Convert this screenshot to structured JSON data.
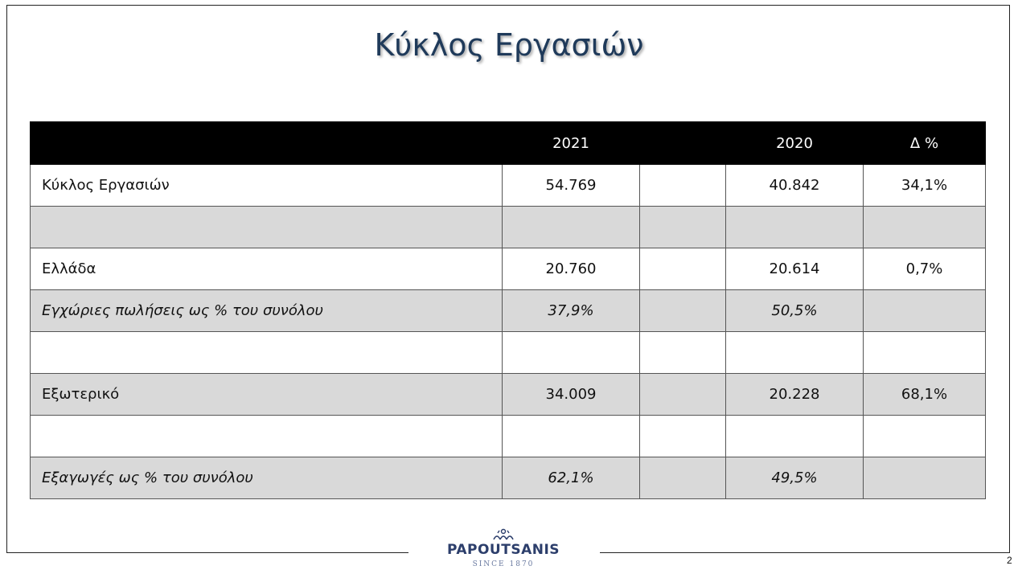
{
  "title": "Κύκλος Εργασιών",
  "table": {
    "headers": [
      "",
      "2021",
      "",
      "2020",
      "Δ %"
    ],
    "rows": [
      {
        "label": "Κύκλος Εργασιών",
        "y2021": "54.769",
        "y2020": "40.842",
        "delta": "34,1%"
      },
      {
        "label": "",
        "y2021": "",
        "y2020": "",
        "delta": ""
      },
      {
        "label": "Ελλάδα",
        "y2021": "20.760",
        "y2020": "20.614",
        "delta": "0,7%"
      },
      {
        "label": "Εγχώριες πωλήσεις ως % του συνόλου",
        "y2021": "37,9%",
        "y2020": "50,5%",
        "delta": ""
      },
      {
        "label": "",
        "y2021": "",
        "y2020": "",
        "delta": ""
      },
      {
        "label": "Εξωτερικό",
        "y2021": "34.009",
        "y2020": "20.228",
        "delta": "68,1%"
      },
      {
        "label": "",
        "y2021": "",
        "y2020": "",
        "delta": ""
      },
      {
        "label": "Εξαγωγές ως % του συνόλου",
        "y2021": "62,1%",
        "y2020": "49,5%",
        "delta": ""
      }
    ]
  },
  "logo": {
    "name": "PAPOUTSANIS",
    "since": "SINCE 1870"
  },
  "page_number": "2",
  "colors": {
    "title": "#1f3a5a",
    "header_bg": "#000000",
    "stripe": "#d9d9d9",
    "logo": "#2c3e6b"
  }
}
